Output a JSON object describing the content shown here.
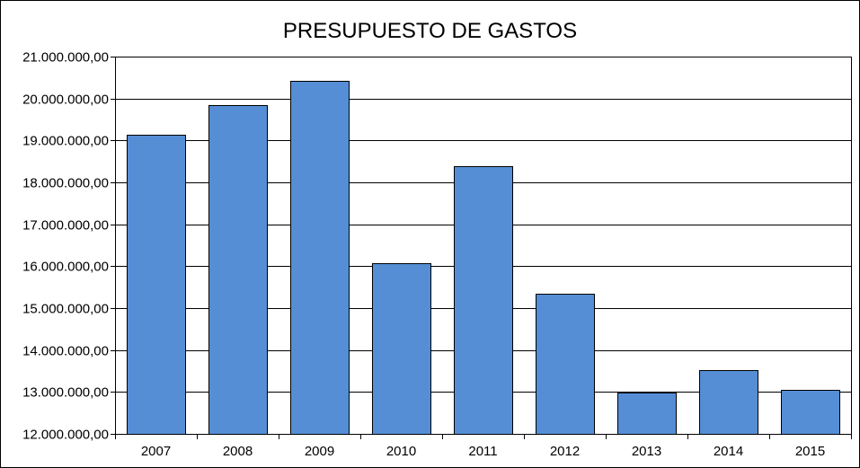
{
  "chart_data": {
    "type": "bar",
    "title": "PRESUPUESTO DE GASTOS",
    "xlabel": "",
    "ylabel": "",
    "categories": [
      "2007",
      "2008",
      "2009",
      "2010",
      "2011",
      "2012",
      "2013",
      "2014",
      "2015"
    ],
    "series": [
      {
        "values": [
          19130000,
          19850000,
          20430000,
          16080000,
          18380000,
          15350000,
          12980000,
          13530000,
          13060000
        ]
      }
    ],
    "ylim": [
      12000000,
      21000000
    ],
    "yticks": [
      12000000,
      13000000,
      14000000,
      15000000,
      16000000,
      17000000,
      18000000,
      19000000,
      20000000,
      21000000
    ],
    "ytick_labels": [
      "12.000.000,00",
      "13.000.000,00",
      "14.000.000,00",
      "15.000.000,00",
      "16.000.000,00",
      "17.000.000,00",
      "18.000.000,00",
      "19.000.000,00",
      "20.000.000,00",
      "21.000.000,00"
    ],
    "grid": true,
    "legend": "none",
    "colors": {
      "bar": "#558ED5",
      "bar_edge": "#000000",
      "grid": "#000000",
      "background": "#FFFFFF"
    }
  }
}
